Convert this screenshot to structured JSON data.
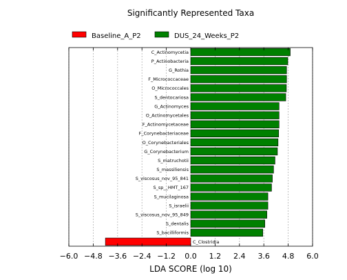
{
  "chart_data": {
    "type": "bar",
    "orientation": "horizontal",
    "title": "Significantly Represented Taxa",
    "xlabel": "LDA SCORE (log 10)",
    "xlim": [
      -6.0,
      6.0
    ],
    "xticks": [
      "−6.0",
      "−4.8",
      "−3.6",
      "−2.4",
      "−1.2",
      "0.0",
      "1.2",
      "2.4",
      "3.6",
      "4.8",
      "6.0"
    ],
    "grid": true,
    "legend_position": "top",
    "legend": [
      {
        "name": "Baseline_A_P2",
        "color": "#ff0000"
      },
      {
        "name": "DUS_24_Weeks_P2",
        "color": "#008000"
      }
    ],
    "series": [
      {
        "name": "Baseline_A_P2",
        "color": "#ff0000",
        "categories": [
          "C_Clostridia"
        ],
        "values": [
          -4.2
        ]
      },
      {
        "name": "DUS_24_Weeks_P2",
        "color": "#008000",
        "categories": [
          "C_Actinomycetia",
          "P_Actinobacteria",
          "G_Rothia",
          "F_Micrococcaceae",
          "O_Micrococcales",
          "S_dentocariosa",
          "G_Actinomyces",
          "O_Actinomycetales",
          "F_Actinomycetaceae",
          "F_Corynebacteriaceae",
          "O_Corynebacteriales",
          "G_Corynebacterium",
          "S_matruchotii",
          "S_massiliensis",
          "S_viscosus_nov_95_841",
          "S_sp__HMT_167",
          "S_mucilaginosa",
          "S_israelii",
          "S_viscosus_nov_95_849",
          "S_dentalis",
          "S_bacilliformis"
        ],
        "values": [
          4.9,
          4.78,
          4.72,
          4.72,
          4.71,
          4.68,
          4.35,
          4.35,
          4.35,
          4.33,
          4.3,
          4.27,
          4.15,
          4.08,
          4.02,
          3.98,
          3.8,
          3.8,
          3.75,
          3.65,
          3.55
        ]
      }
    ]
  }
}
